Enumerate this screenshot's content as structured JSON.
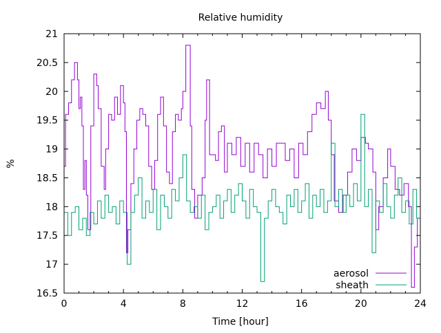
{
  "chart_data": {
    "type": "line",
    "title": "Relative humidity",
    "xlabel": "Time [hour]",
    "ylabel": "%",
    "xlim": [
      0,
      24
    ],
    "ylim": [
      16.5,
      21
    ],
    "xticks": [
      "0",
      "4",
      "8",
      "12",
      "16",
      "20",
      "24"
    ],
    "yticks": [
      "16.5",
      "17",
      "17.5",
      "18",
      "18.5",
      "19",
      "19.5",
      "20",
      "20.5",
      "21"
    ],
    "legend_position": "bottom-right",
    "grid": false,
    "series": [
      {
        "name": "aerosol",
        "color": "#9400d3",
        "x": [
          0,
          0.1,
          0.3,
          0.5,
          0.7,
          0.9,
          1.0,
          1.1,
          1.2,
          1.3,
          1.4,
          1.5,
          1.6,
          1.8,
          2.0,
          2.2,
          2.3,
          2.5,
          2.7,
          2.8,
          3.0,
          3.2,
          3.4,
          3.6,
          3.8,
          4.0,
          4.1,
          4.2,
          4.3,
          4.5,
          4.7,
          4.9,
          5.1,
          5.3,
          5.5,
          5.7,
          5.9,
          6.1,
          6.3,
          6.5,
          6.7,
          6.9,
          7.1,
          7.3,
          7.5,
          7.7,
          7.9,
          8.0,
          8.2,
          8.4,
          8.5,
          8.6,
          8.8,
          9.0,
          9.3,
          9.5,
          9.6,
          9.8,
          10.0,
          10.2,
          10.4,
          10.6,
          10.8,
          11.0,
          11.3,
          11.6,
          11.9,
          12.2,
          12.5,
          12.8,
          13.1,
          13.4,
          13.7,
          14.0,
          14.3,
          14.6,
          14.9,
          15.2,
          15.5,
          15.8,
          16.1,
          16.4,
          16.7,
          17.0,
          17.3,
          17.6,
          17.8,
          18.0,
          18.2,
          18.5,
          18.8,
          19.1,
          19.4,
          19.7,
          20.0,
          20.3,
          20.5,
          20.8,
          21.0,
          21.2,
          21.5,
          21.8,
          22.0,
          22.3,
          22.6,
          22.9,
          23.2,
          23.4,
          23.6,
          23.8,
          24.0
        ],
        "y": [
          18.7,
          19.6,
          19.8,
          20.2,
          20.5,
          20.2,
          19.7,
          19.9,
          19.4,
          18.3,
          18.8,
          18.2,
          17.6,
          19.4,
          20.3,
          20.1,
          19.7,
          18.7,
          18.3,
          19.0,
          19.6,
          19.5,
          19.9,
          19.6,
          20.1,
          19.8,
          19.3,
          17.2,
          17.6,
          18.4,
          19.0,
          19.5,
          19.7,
          19.6,
          19.4,
          18.7,
          18.3,
          18.8,
          19.6,
          19.9,
          19.4,
          18.6,
          18.4,
          19.3,
          19.6,
          19.5,
          19.7,
          20.0,
          20.8,
          20.8,
          19.4,
          18.3,
          17.8,
          18.2,
          18.5,
          19.5,
          20.2,
          18.9,
          18.9,
          18.8,
          19.3,
          19.4,
          18.6,
          19.1,
          18.9,
          19.2,
          18.7,
          19.1,
          18.6,
          19.1,
          18.9,
          18.5,
          19.0,
          18.7,
          19.1,
          19.1,
          18.8,
          19.0,
          18.5,
          19.1,
          18.9,
          19.3,
          19.6,
          19.8,
          19.7,
          20.0,
          19.5,
          18.9,
          18.1,
          17.9,
          18.2,
          18.6,
          19.0,
          18.8,
          19.2,
          19.1,
          19.0,
          18.6,
          17.6,
          18.0,
          18.5,
          19.0,
          18.7,
          18.3,
          18.2,
          18.4,
          18.0,
          16.6,
          17.3,
          17.8,
          18.3
        ]
      },
      {
        "name": "sheath",
        "color": "#009e73",
        "y": [
          17.9,
          17.5,
          17.9,
          18.0,
          17.6,
          17.8,
          17.5,
          17.9,
          17.7,
          18.1,
          17.8,
          18.2,
          17.9,
          18.0,
          17.7,
          18.1,
          17.9,
          17.0,
          17.9,
          18.2,
          18.5,
          17.8,
          18.1,
          17.9,
          18.3,
          17.6,
          18.2,
          18.0,
          17.8,
          18.3,
          18.1,
          18.5,
          18.9,
          18.1,
          17.9,
          18.0,
          17.8,
          18.2,
          17.6,
          17.9,
          18.0,
          18.2,
          17.8,
          18.1,
          18.3,
          17.9,
          18.2,
          18.4,
          18.1,
          17.8,
          18.3,
          18.0,
          17.9,
          16.7,
          17.8,
          18.1,
          18.3,
          18.0,
          17.9,
          17.7,
          18.2,
          18.0,
          18.3,
          17.9,
          18.1,
          18.4,
          17.8,
          18.2,
          18.0,
          18.3,
          17.9,
          18.1,
          19.1,
          18.0,
          18.3,
          17.9,
          18.2,
          18.0,
          18.4,
          18.1,
          19.6,
          18.0,
          18.3,
          17.2,
          18.1,
          17.9,
          18.4,
          18.0,
          17.8,
          18.2,
          18.5,
          17.9,
          18.1,
          17.7,
          18.3,
          17.8,
          18.2
        ]
      }
    ]
  }
}
